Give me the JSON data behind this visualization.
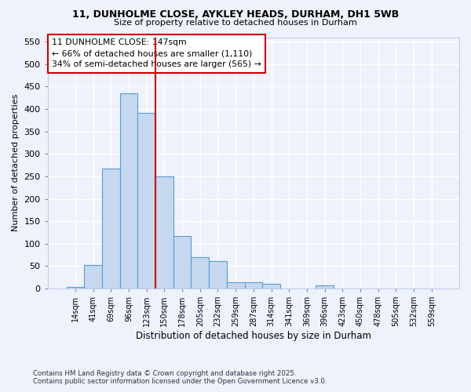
{
  "title1": "11, DUNHOLME CLOSE, AYKLEY HEADS, DURHAM, DH1 5WB",
  "title2": "Size of property relative to detached houses in Durham",
  "xlabel": "Distribution of detached houses by size in Durham",
  "ylabel": "Number of detached properties",
  "categories": [
    "14sqm",
    "41sqm",
    "69sqm",
    "96sqm",
    "123sqm",
    "150sqm",
    "178sqm",
    "205sqm",
    "232sqm",
    "259sqm",
    "287sqm",
    "314sqm",
    "341sqm",
    "369sqm",
    "396sqm",
    "423sqm",
    "450sqm",
    "478sqm",
    "505sqm",
    "532sqm",
    "559sqm"
  ],
  "values": [
    3,
    52,
    267,
    435,
    391,
    250,
    117,
    70,
    62,
    14,
    14,
    10,
    0,
    0,
    7,
    0,
    0,
    0,
    0,
    0,
    0
  ],
  "bar_color": "#c5d8f0",
  "bar_edge_color": "#5b9bd5",
  "vline_x_index": 5,
  "annotation_title": "11 DUNHOLME CLOSE: 147sqm",
  "annotation_line1": "← 66% of detached houses are smaller (1,110)",
  "annotation_line2": "34% of semi-detached houses are larger (565) →",
  "vline_color": "#cc0000",
  "ylim": [
    0,
    560
  ],
  "yticks": [
    0,
    50,
    100,
    150,
    200,
    250,
    300,
    350,
    400,
    450,
    500,
    550
  ],
  "background_color": "#eef2fb",
  "grid_color": "#d0d8f0",
  "footnote1": "Contains HM Land Registry data © Crown copyright and database right 2025.",
  "footnote2": "Contains public sector information licensed under the Open Government Licence v3.0."
}
